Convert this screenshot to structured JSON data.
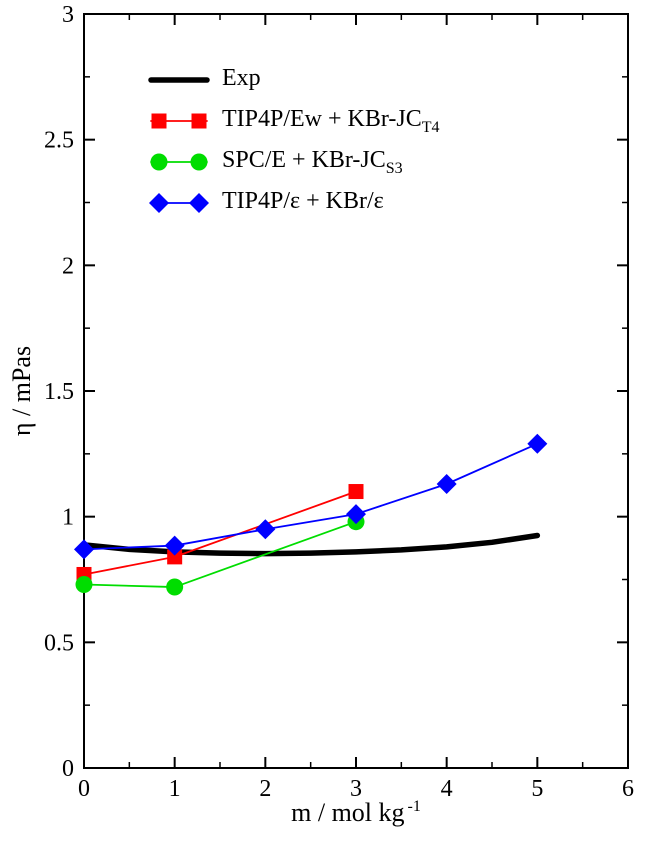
{
  "chart_data": {
    "type": "line",
    "title": "",
    "xlabel_main": "m / mol kg",
    "xlabel_sup": "-1",
    "ylabel": "η / mPas",
    "xlim": [
      0,
      6
    ],
    "ylim": [
      0,
      3
    ],
    "x_major_ticks": [
      0,
      1,
      2,
      3,
      4,
      5,
      6
    ],
    "x_tick_labels": [
      "0",
      "1",
      "2",
      "3",
      "4",
      "5",
      "6"
    ],
    "x_minor_step": 0.5,
    "y_major_ticks": [
      0,
      0.5,
      1,
      1.5,
      2,
      2.5,
      3
    ],
    "y_tick_labels": [
      "0",
      "0.5",
      "1",
      "1.5",
      "2",
      "2.5",
      "3"
    ],
    "y_minor_step": 0.25,
    "grid": false,
    "legend_position": "top-left-inside",
    "series": [
      {
        "id": "exp",
        "name": "Exp",
        "label_main": "Exp",
        "label_sub": "",
        "color": "#000000",
        "line_width": 5.5,
        "marker": "none",
        "x": [
          0,
          0.5,
          1,
          1.5,
          2,
          2.5,
          3,
          3.5,
          4,
          4.5,
          5
        ],
        "y": [
          0.888,
          0.87,
          0.86,
          0.855,
          0.853,
          0.855,
          0.86,
          0.868,
          0.88,
          0.898,
          0.925
        ]
      },
      {
        "id": "tip4pew",
        "name": "TIP4P/Ew + KBr-JC_T4",
        "label_main": "TIP4P/Ew + KBr-JC",
        "label_sub": "T4",
        "color": "#ff0000",
        "line_width": 1.8,
        "marker": "square",
        "x": [
          0,
          1,
          3
        ],
        "y": [
          0.77,
          0.84,
          1.1
        ]
      },
      {
        "id": "spce",
        "name": "SPC/E + KBr-JC_S3",
        "label_main": "SPC/E + KBr-JC",
        "label_sub": "S3",
        "color": "#00dd00",
        "line_width": 1.8,
        "marker": "circle",
        "x": [
          0,
          1,
          3
        ],
        "y": [
          0.73,
          0.72,
          0.98
        ]
      },
      {
        "id": "tip4peps",
        "name": "TIP4P/ε + KBr/ε",
        "label_main": "TIP4P/ε + KBr/ε",
        "label_sub": "",
        "color": "#0000ff",
        "line_width": 1.8,
        "marker": "diamond",
        "x": [
          0,
          1,
          2,
          3,
          4,
          5
        ],
        "y": [
          0.87,
          0.885,
          0.95,
          1.01,
          1.13,
          1.29
        ]
      }
    ]
  }
}
